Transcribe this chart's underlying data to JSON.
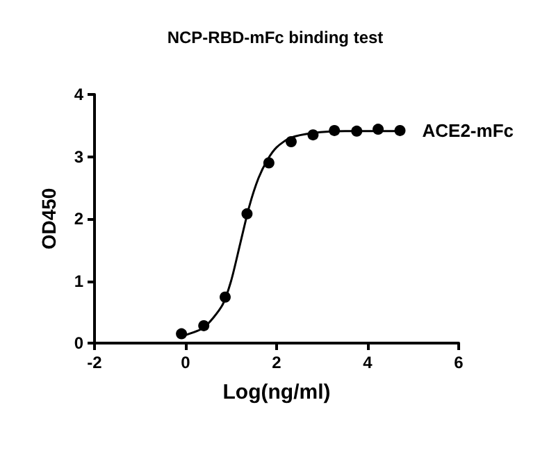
{
  "chart_data": {
    "type": "scatter",
    "title": "NCP-RBD-mFc binding test",
    "xlabel": "Log(ng/ml)",
    "ylabel": "OD450",
    "series": [
      {
        "name": "ACE2-mFc",
        "color": "#000000",
        "x": [
          -0.09,
          0.4,
          0.87,
          1.35,
          1.83,
          2.32,
          2.8,
          3.27,
          3.76,
          4.23,
          4.71
        ],
        "values": [
          0.15,
          0.28,
          0.74,
          2.08,
          2.9,
          3.24,
          3.35,
          3.42,
          3.41,
          3.44,
          3.42
        ]
      },
      {
        "type": "line",
        "color": "#000000",
        "marker": "none",
        "x": [
          -0.05,
          0.4,
          0.8,
          1.0,
          1.2,
          1.4,
          1.6,
          1.8,
          2.0,
          2.3,
          2.8,
          3.5,
          4.7
        ],
        "values": [
          0.12,
          0.25,
          0.6,
          1.0,
          1.6,
          2.2,
          2.65,
          2.95,
          3.15,
          3.3,
          3.38,
          3.41,
          3.41
        ]
      }
    ],
    "marker": "circle",
    "line_style": "solid",
    "xlim": [
      -2,
      6
    ],
    "xticks": [
      -2,
      0,
      2,
      4,
      6
    ],
    "ylim": [
      0,
      4
    ],
    "yticks": [
      0,
      1,
      2,
      3,
      4
    ],
    "grid": false,
    "legend": false
  }
}
